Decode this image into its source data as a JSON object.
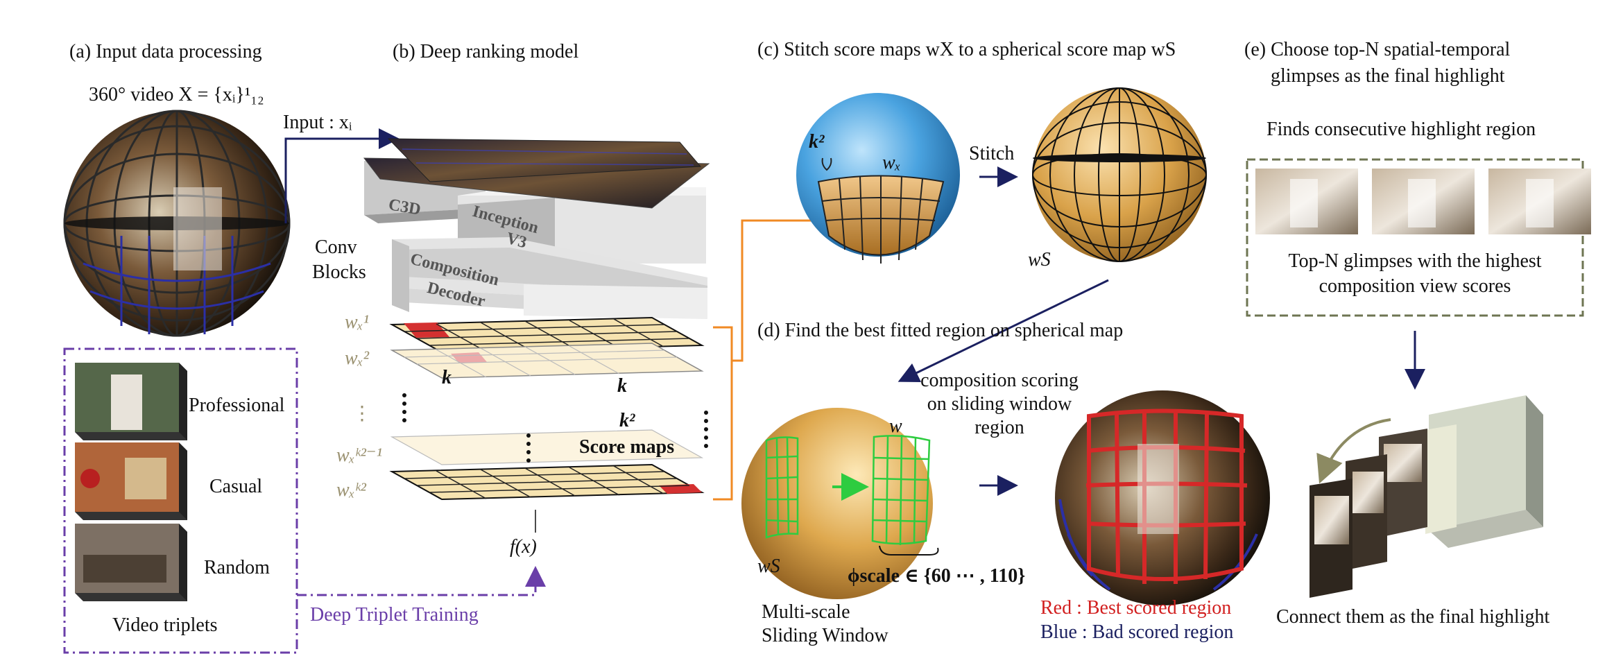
{
  "panels": {
    "a": {
      "title": "(a) Input data processing",
      "video_label": "360° video X = {xᵢ}¹₁₂",
      "triplets": [
        "Professional",
        "Casual",
        "Random"
      ],
      "triplets_caption": "Video triplets"
    },
    "b": {
      "title": "(b) Deep ranking model",
      "input_label": "Input : xᵢ",
      "block_c3d": "C3D",
      "block_inception": "Inception V3",
      "block_inception_1": "Inception",
      "block_inception_2": "V3",
      "block_decoder_1": "Composition",
      "block_decoder_2": "Decoder",
      "conv_blocks_1": "Conv",
      "conv_blocks_2": "Blocks",
      "score_labels": [
        "wₓ¹",
        "wₓ²",
        "⋮",
        "wₓᵏ²⁻¹",
        "wₓᵏ²"
      ],
      "k_label": "k",
      "k2_label": "k²",
      "score_maps": "Score maps",
      "fx": "f(x)",
      "training": "Deep Triplet Training"
    },
    "c": {
      "title": "(c) Stitch score maps wX to a spherical score map wS",
      "k2": "k²",
      "wx": "wₓ",
      "stitch": "Stitch",
      "ws": "wS"
    },
    "d": {
      "title": "(d) Find the best fitted region on spherical map",
      "scoring_1": "composition scoring",
      "scoring_2": "on sliding window",
      "scoring_3": "region",
      "w": "w",
      "ws": "wS",
      "phi": "ϕscale ∈ {60 ⋯ , 110}",
      "multiscale_1": "Multi-scale",
      "multiscale_2": "Sliding Window",
      "legend_red": "Red  : Best scored region",
      "legend_blue": "Blue : Bad scored region"
    },
    "e": {
      "title_1": "(e) Choose top-N spatial-temporal",
      "title_2": "glimpses as the final highlight",
      "finds": "Finds consecutive highlight region",
      "topn_1": "Top-N glimpses with the highest",
      "topn_2": "composition view scores",
      "connect": "Connect them as the final highlight"
    }
  },
  "colors": {
    "navy": "#1b2060",
    "orange": "#f08a24",
    "purple": "#6a3ea8",
    "red": "#d22020",
    "olive_dash": "#6e7552",
    "gold": "#d9a24a",
    "blue_sphere": "#3d8fd0",
    "green": "#2ecc40"
  }
}
